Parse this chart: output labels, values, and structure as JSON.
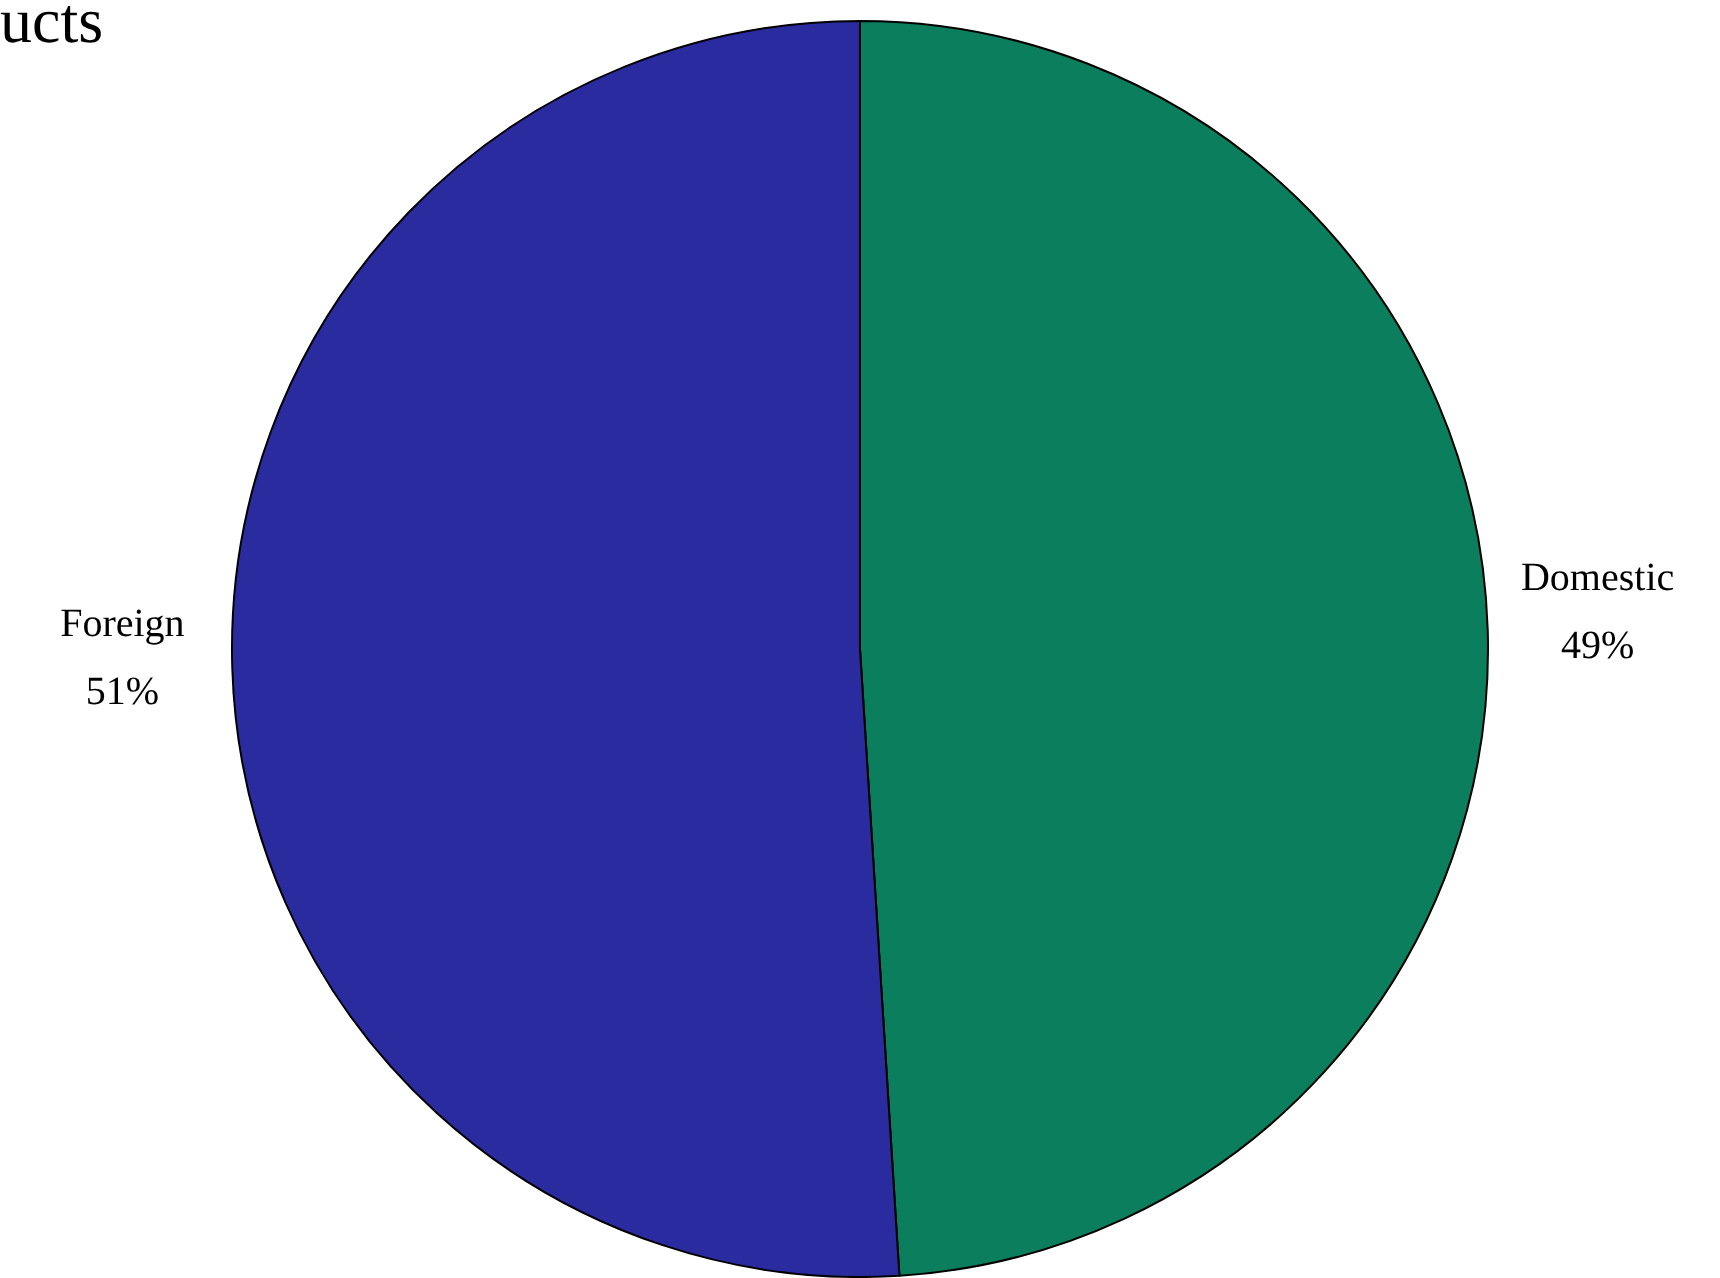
{
  "chart_data": {
    "type": "pie",
    "title": "ucts",
    "categories": [
      "Domestic",
      "Foreign"
    ],
    "values": [
      49,
      51
    ],
    "colors": [
      "#0b7e5e",
      "#2b2ba0"
    ],
    "value_labels": [
      "49%",
      "51%"
    ],
    "legend": false
  }
}
